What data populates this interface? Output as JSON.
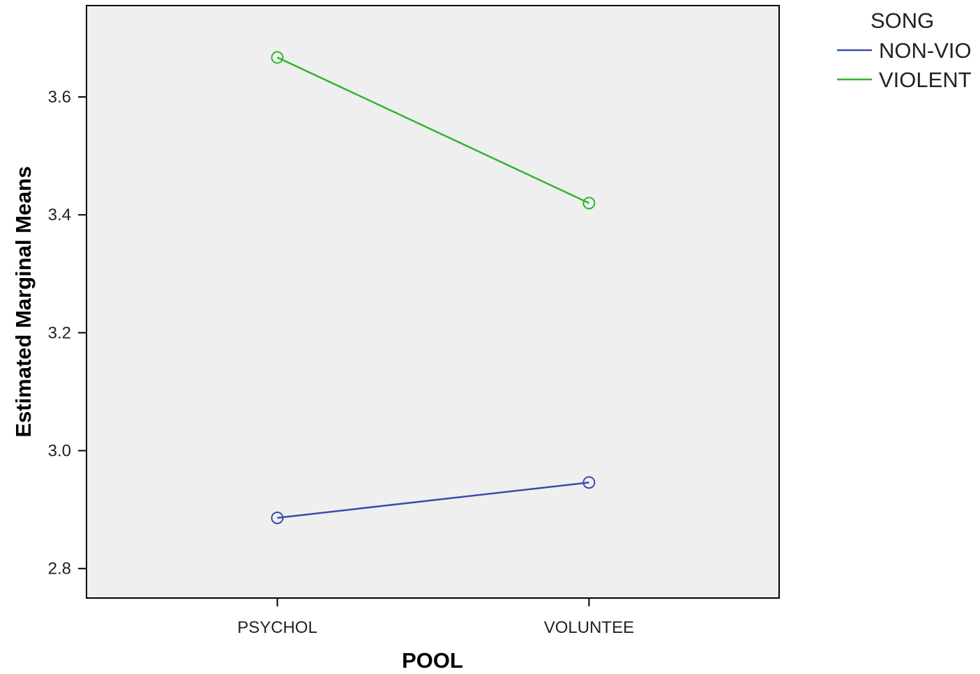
{
  "chart_data": {
    "type": "line",
    "title": "",
    "xlabel": "POOL",
    "ylabel": "Estimated Marginal Means",
    "categories": [
      "PSYCHOL",
      "VOLUNTEE"
    ],
    "ylim": [
      2.75,
      3.755
    ],
    "yticks": [
      "2.8",
      "3.0",
      "3.2",
      "3.4",
      "3.6"
    ],
    "grid": false,
    "legend": {
      "title": "SONG",
      "position": "top-right"
    },
    "marker": "open-circle",
    "plot_background": "#efefef",
    "series": [
      {
        "name": "NON-VIO",
        "color": "#3b4ab0",
        "values": [
          2.886,
          2.946
        ]
      },
      {
        "name": "VIOLENT",
        "color": "#2fb52f",
        "values": [
          3.667,
          3.42
        ]
      }
    ]
  }
}
